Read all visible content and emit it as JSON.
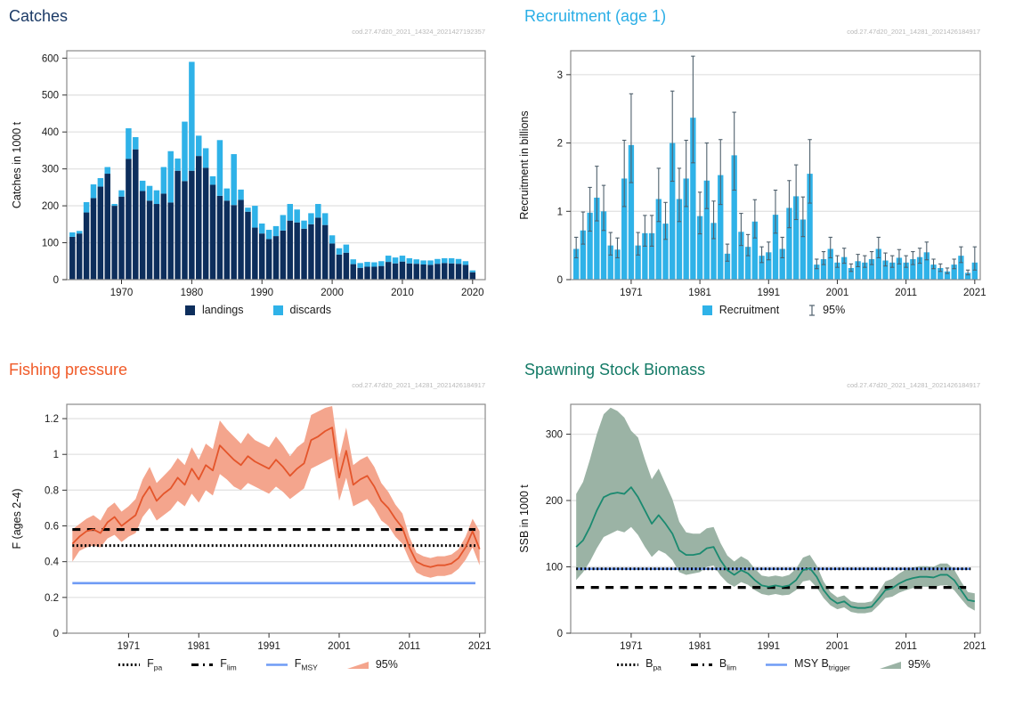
{
  "chart_data": [
    {
      "key": "catches",
      "type": "bar",
      "title": "Catches",
      "title_color": "#1b3a66",
      "watermark": "cod.27.47d20_2021_14324_2021427192357",
      "ylabel": "Catches in 1000 t",
      "ylim": [
        0,
        620
      ],
      "yticks": [
        0,
        100,
        200,
        300,
        400,
        500,
        600
      ],
      "xticks": [
        1970,
        1980,
        1990,
        2000,
        2010,
        2020
      ],
      "xlim": [
        1962.2,
        2021.8
      ],
      "years": [
        1963,
        1964,
        1965,
        1966,
        1967,
        1968,
        1969,
        1970,
        1971,
        1972,
        1973,
        1974,
        1975,
        1976,
        1977,
        1978,
        1979,
        1980,
        1981,
        1982,
        1983,
        1984,
        1985,
        1986,
        1987,
        1988,
        1989,
        1990,
        1991,
        1992,
        1993,
        1994,
        1995,
        1996,
        1997,
        1998,
        1999,
        2000,
        2001,
        2002,
        2003,
        2004,
        2005,
        2006,
        2007,
        2008,
        2009,
        2010,
        2011,
        2012,
        2013,
        2014,
        2015,
        2016,
        2017,
        2018,
        2019,
        2020
      ],
      "series": [
        {
          "name": "landings",
          "color": "#0d2e5c",
          "values": [
            116,
            125,
            182,
            221,
            252,
            287,
            200,
            225,
            327,
            353,
            240,
            214,
            205,
            233,
            209,
            295,
            267,
            295,
            335,
            303,
            257,
            227,
            214,
            202,
            216,
            184,
            141,
            125,
            110,
            118,
            133,
            160,
            155,
            138,
            150,
            168,
            148,
            98,
            68,
            73,
            42,
            32,
            35,
            35,
            37,
            48,
            44,
            49,
            44,
            43,
            41,
            40,
            43,
            45,
            44,
            43,
            40,
            20
          ]
        },
        {
          "name": "discards",
          "color": "#2fb2e8",
          "values": [
            12,
            7,
            28,
            37,
            23,
            18,
            5,
            17,
            83,
            33,
            28,
            40,
            37,
            72,
            139,
            33,
            161,
            295,
            55,
            53,
            23,
            151,
            33,
            138,
            28,
            11,
            59,
            27,
            25,
            27,
            42,
            45,
            35,
            22,
            30,
            37,
            32,
            22,
            17,
            22,
            13,
            13,
            13,
            12,
            13,
            17,
            16,
            16,
            14,
            12,
            11,
            12,
            13,
            13,
            14,
            13,
            10,
            5
          ]
        }
      ],
      "legend": [
        {
          "swatch": "square",
          "color": "#0d2e5c",
          "label": "landings"
        },
        {
          "swatch": "square",
          "color": "#2fb2e8",
          "label": "discards"
        }
      ]
    },
    {
      "key": "recruitment",
      "type": "bar",
      "title": "Recruitment (age 1)",
      "title_color": "#2aaee6",
      "watermark": "cod.27.47d20_2021_14281_2021426184917",
      "ylabel": "Recruitment in billions",
      "ylim": [
        0,
        3.35
      ],
      "yticks": [
        0,
        1,
        2,
        3
      ],
      "xticks": [
        1971,
        1981,
        1991,
        2001,
        2011,
        2021
      ],
      "xlim": [
        1962.2,
        2021.8
      ],
      "bar_color": "#2fb2e8",
      "error_color": "#50616d",
      "years": [
        1963,
        1964,
        1965,
        1966,
        1967,
        1968,
        1969,
        1970,
        1971,
        1972,
        1973,
        1974,
        1975,
        1976,
        1977,
        1978,
        1979,
        1980,
        1981,
        1982,
        1983,
        1984,
        1985,
        1986,
        1987,
        1988,
        1989,
        1990,
        1991,
        1992,
        1993,
        1994,
        1995,
        1996,
        1997,
        1998,
        1999,
        2000,
        2001,
        2002,
        2003,
        2004,
        2005,
        2006,
        2007,
        2008,
        2009,
        2010,
        2011,
        2012,
        2013,
        2014,
        2015,
        2016,
        2017,
        2018,
        2019,
        2020,
        2021
      ],
      "values": [
        0.45,
        0.72,
        0.98,
        1.2,
        1.0,
        0.5,
        0.44,
        1.48,
        1.97,
        0.5,
        0.68,
        0.68,
        1.18,
        0.82,
        2.0,
        1.18,
        1.48,
        2.37,
        0.93,
        1.45,
        0.83,
        1.53,
        0.38,
        1.82,
        0.7,
        0.48,
        0.85,
        0.35,
        0.4,
        0.95,
        0.45,
        1.05,
        1.22,
        0.88,
        1.55,
        0.22,
        0.3,
        0.45,
        0.25,
        0.33,
        0.17,
        0.27,
        0.25,
        0.3,
        0.45,
        0.28,
        0.25,
        0.32,
        0.25,
        0.3,
        0.33,
        0.4,
        0.22,
        0.17,
        0.12,
        0.22,
        0.35,
        0.1,
        0.25
      ],
      "ci_low": [
        0.32,
        0.52,
        0.71,
        0.86,
        0.72,
        0.36,
        0.32,
        1.07,
        1.42,
        0.36,
        0.49,
        0.49,
        0.85,
        0.59,
        1.44,
        0.85,
        1.07,
        1.71,
        0.67,
        1.04,
        0.6,
        1.1,
        0.27,
        1.31,
        0.5,
        0.35,
        0.61,
        0.25,
        0.29,
        0.68,
        0.32,
        0.76,
        0.88,
        0.63,
        1.12,
        0.16,
        0.22,
        0.32,
        0.18,
        0.24,
        0.12,
        0.19,
        0.18,
        0.22,
        0.32,
        0.2,
        0.18,
        0.23,
        0.18,
        0.22,
        0.24,
        0.29,
        0.16,
        0.12,
        0.09,
        0.16,
        0.25,
        0.07,
        0.14
      ],
      "ci_high": [
        0.62,
        0.99,
        1.35,
        1.66,
        1.38,
        0.69,
        0.61,
        2.04,
        2.72,
        0.69,
        0.94,
        0.94,
        1.63,
        1.13,
        2.76,
        1.63,
        2.04,
        3.27,
        1.28,
        2.0,
        1.15,
        2.05,
        0.52,
        2.45,
        0.97,
        0.66,
        1.17,
        0.48,
        0.55,
        1.31,
        0.62,
        1.45,
        1.68,
        1.21,
        2.05,
        0.3,
        0.41,
        0.62,
        0.35,
        0.46,
        0.23,
        0.37,
        0.35,
        0.41,
        0.62,
        0.39,
        0.35,
        0.44,
        0.35,
        0.41,
        0.46,
        0.55,
        0.3,
        0.23,
        0.17,
        0.3,
        0.48,
        0.14,
        0.48
      ],
      "legend": [
        {
          "swatch": "square",
          "color": "#2fb2e8",
          "label": "Recruitment"
        },
        {
          "swatch": "errorbar",
          "color": "#50616d",
          "label": "95%"
        }
      ]
    },
    {
      "key": "fishing-pressure",
      "type": "line",
      "title": "Fishing pressure",
      "title_color": "#f05a28",
      "watermark": "cod.27.47d20_2021_14281_2021426184917",
      "ylabel": "F (ages 2-4)",
      "ylim": [
        0,
        1.28
      ],
      "yticks": [
        0,
        0.2,
        0.4,
        0.6,
        0.8,
        1,
        1.2
      ],
      "ytick_labels": [
        "0",
        "0.2",
        "0.4",
        "0.6",
        "0.8",
        "1",
        "1.2"
      ],
      "xticks": [
        1971,
        1981,
        1991,
        2001,
        2011,
        2021
      ],
      "xlim": [
        1962.2,
        2021.8
      ],
      "line_color": "#e4552b",
      "ribbon_color": "#f4a58d",
      "years": [
        1963,
        1964,
        1965,
        1966,
        1967,
        1968,
        1969,
        1970,
        1971,
        1972,
        1973,
        1974,
        1975,
        1976,
        1977,
        1978,
        1979,
        1980,
        1981,
        1982,
        1983,
        1984,
        1985,
        1986,
        1987,
        1988,
        1989,
        1990,
        1991,
        1992,
        1993,
        1994,
        1995,
        1996,
        1997,
        1998,
        1999,
        2000,
        2001,
        2002,
        2003,
        2004,
        2005,
        2006,
        2007,
        2008,
        2009,
        2010,
        2011,
        2012,
        2013,
        2014,
        2015,
        2016,
        2017,
        2018,
        2019,
        2020,
        2021
      ],
      "values": [
        0.5,
        0.54,
        0.57,
        0.58,
        0.56,
        0.62,
        0.65,
        0.6,
        0.63,
        0.66,
        0.76,
        0.82,
        0.74,
        0.78,
        0.81,
        0.87,
        0.83,
        0.92,
        0.86,
        0.94,
        0.91,
        1.05,
        1.01,
        0.97,
        0.94,
        0.99,
        0.96,
        0.94,
        0.92,
        0.97,
        0.93,
        0.88,
        0.92,
        0.95,
        1.08,
        1.1,
        1.13,
        1.15,
        0.87,
        1.02,
        0.83,
        0.86,
        0.88,
        0.82,
        0.74,
        0.7,
        0.64,
        0.59,
        0.48,
        0.4,
        0.38,
        0.37,
        0.38,
        0.38,
        0.39,
        0.42,
        0.48,
        0.57,
        0.47
      ],
      "ci_low": [
        0.4,
        0.46,
        0.48,
        0.49,
        0.48,
        0.53,
        0.55,
        0.51,
        0.54,
        0.56,
        0.65,
        0.7,
        0.63,
        0.66,
        0.69,
        0.74,
        0.71,
        0.78,
        0.73,
        0.8,
        0.77,
        0.89,
        0.86,
        0.82,
        0.8,
        0.84,
        0.82,
        0.8,
        0.78,
        0.82,
        0.79,
        0.75,
        0.78,
        0.81,
        0.92,
        0.94,
        0.96,
        0.98,
        0.74,
        0.87,
        0.71,
        0.73,
        0.75,
        0.7,
        0.63,
        0.6,
        0.54,
        0.5,
        0.41,
        0.34,
        0.32,
        0.31,
        0.32,
        0.32,
        0.33,
        0.36,
        0.41,
        0.48,
        0.38
      ],
      "ci_high": [
        0.58,
        0.61,
        0.64,
        0.66,
        0.63,
        0.7,
        0.73,
        0.68,
        0.71,
        0.75,
        0.86,
        0.93,
        0.84,
        0.88,
        0.92,
        0.98,
        0.94,
        1.04,
        0.97,
        1.06,
        1.03,
        1.19,
        1.14,
        1.1,
        1.06,
        1.12,
        1.08,
        1.06,
        1.04,
        1.1,
        1.05,
        0.99,
        1.04,
        1.07,
        1.22,
        1.24,
        1.26,
        1.27,
        0.98,
        1.15,
        0.94,
        0.97,
        0.99,
        0.93,
        0.84,
        0.79,
        0.72,
        0.67,
        0.54,
        0.45,
        0.43,
        0.42,
        0.43,
        0.43,
        0.44,
        0.47,
        0.54,
        0.64,
        0.57
      ],
      "ref_lines": [
        {
          "label": "Fpa",
          "style": "dotted",
          "value": 0.49,
          "color": "#000000"
        },
        {
          "label": "Flim",
          "style": "dashed",
          "value": 0.58,
          "color": "#000000"
        },
        {
          "label": "FMSY",
          "style": "solid",
          "value": 0.28,
          "color": "#6f9bf5"
        }
      ],
      "legend": [
        {
          "swatch": "dotted",
          "color": "#000000",
          "label_main": "F",
          "label_sub": "pa"
        },
        {
          "swatch": "dashdot",
          "color": "#000000",
          "label_main": "F",
          "label_sub": "lim"
        },
        {
          "swatch": "line",
          "color": "#6f9bf5",
          "label_main": "F",
          "label_sub": "MSY"
        },
        {
          "swatch": "ribbon",
          "color": "#f4a58d",
          "label": "95%"
        }
      ]
    },
    {
      "key": "ssb",
      "type": "line",
      "title": "Spawning Stock Biomass",
      "title_color": "#137a66",
      "watermark": "cod.27.47d20_2021_14281_2021426184917",
      "ylabel": "SSB in 1000 t",
      "ylim": [
        0,
        345
      ],
      "yticks": [
        0,
        100,
        200,
        300
      ],
      "xticks": [
        1971,
        1981,
        1991,
        2001,
        2011,
        2021
      ],
      "xlim": [
        1962.2,
        2021.8
      ],
      "line_color": "#1b8a70",
      "ribbon_color": "#9bb3a5",
      "years": [
        1963,
        1964,
        1965,
        1966,
        1967,
        1968,
        1969,
        1970,
        1971,
        1972,
        1973,
        1974,
        1975,
        1976,
        1977,
        1978,
        1979,
        1980,
        1981,
        1982,
        1983,
        1984,
        1985,
        1986,
        1987,
        1988,
        1989,
        1990,
        1991,
        1992,
        1993,
        1994,
        1995,
        1996,
        1997,
        1998,
        1999,
        2000,
        2001,
        2002,
        2003,
        2004,
        2005,
        2006,
        2007,
        2008,
        2009,
        2010,
        2011,
        2012,
        2013,
        2014,
        2015,
        2016,
        2017,
        2018,
        2019,
        2020,
        2021
      ],
      "values": [
        130,
        140,
        160,
        185,
        205,
        210,
        212,
        210,
        220,
        205,
        185,
        165,
        178,
        165,
        150,
        125,
        118,
        118,
        120,
        128,
        130,
        110,
        95,
        88,
        95,
        90,
        80,
        72,
        70,
        72,
        70,
        72,
        80,
        95,
        98,
        85,
        65,
        52,
        45,
        48,
        40,
        38,
        38,
        40,
        52,
        65,
        68,
        75,
        80,
        83,
        85,
        85,
        84,
        88,
        88,
        80,
        65,
        50,
        48
      ],
      "ci_low": [
        80,
        92,
        108,
        128,
        145,
        150,
        155,
        152,
        160,
        148,
        130,
        115,
        125,
        120,
        110,
        92,
        88,
        90,
        92,
        100,
        102,
        87,
        76,
        70,
        77,
        73,
        65,
        59,
        57,
        59,
        57,
        58,
        65,
        78,
        80,
        69,
        53,
        42,
        36,
        39,
        32,
        30,
        30,
        32,
        42,
        53,
        55,
        61,
        65,
        68,
        70,
        70,
        69,
        72,
        72,
        65,
        52,
        40,
        34
      ],
      "ci_high": [
        210,
        228,
        262,
        300,
        330,
        340,
        335,
        325,
        305,
        295,
        262,
        232,
        248,
        225,
        202,
        168,
        152,
        150,
        150,
        158,
        160,
        136,
        117,
        108,
        116,
        110,
        97,
        87,
        85,
        87,
        85,
        88,
        97,
        114,
        118,
        102,
        78,
        62,
        54,
        57,
        48,
        46,
        46,
        48,
        62,
        78,
        82,
        90,
        96,
        99,
        101,
        101,
        100,
        105,
        105,
        96,
        78,
        62,
        60
      ],
      "ref_lines": [
        {
          "label": "MSY Btrigger",
          "style": "solid",
          "value": 97,
          "color": "#6f9bf5"
        },
        {
          "label": "Bpa",
          "style": "dotted",
          "value": 97,
          "color": "#000000"
        },
        {
          "label": "Blim",
          "style": "dashed",
          "value": 69,
          "color": "#000000"
        }
      ],
      "legend": [
        {
          "swatch": "dotted",
          "color": "#000000",
          "label_main": "B",
          "label_sub": "pa"
        },
        {
          "swatch": "dashdot",
          "color": "#000000",
          "label_main": "B",
          "label_sub": "lim"
        },
        {
          "swatch": "line",
          "color": "#6f9bf5",
          "label_main": "MSY B",
          "label_sub": "trigger"
        },
        {
          "swatch": "ribbon",
          "color": "#9bb3a5",
          "label": "95%"
        }
      ]
    }
  ]
}
